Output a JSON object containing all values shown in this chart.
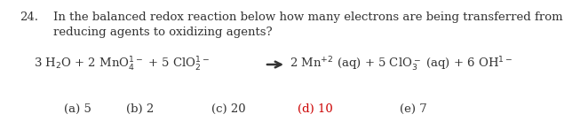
{
  "question_number": "24.",
  "question_text_line1": "In the balanced redox reaction below how many electrons are being transferred from",
  "question_text_line2": "reducing agents to oxidizing agents?",
  "eq_left": "3 H$_2$O + 2 MnO$_4^{1-}$ + 5 ClO$_2^{1-}$",
  "eq_right": "2 Mn$^{+2}$ (aq) + 5 ClO$_3^-$ (aq) + 6 OH$^{1-}$",
  "choices": [
    {
      "label": "(a) 5",
      "color": "#333333"
    },
    {
      "label": "(b) 2",
      "color": "#333333"
    },
    {
      "label": "(c) 20",
      "color": "#333333"
    },
    {
      "label": "(d) 10",
      "color": "#cc0000"
    },
    {
      "label": "(e) 7",
      "color": "#333333"
    }
  ],
  "text_color": "#333333",
  "background_color": "#ffffff",
  "font_size": 9.5
}
